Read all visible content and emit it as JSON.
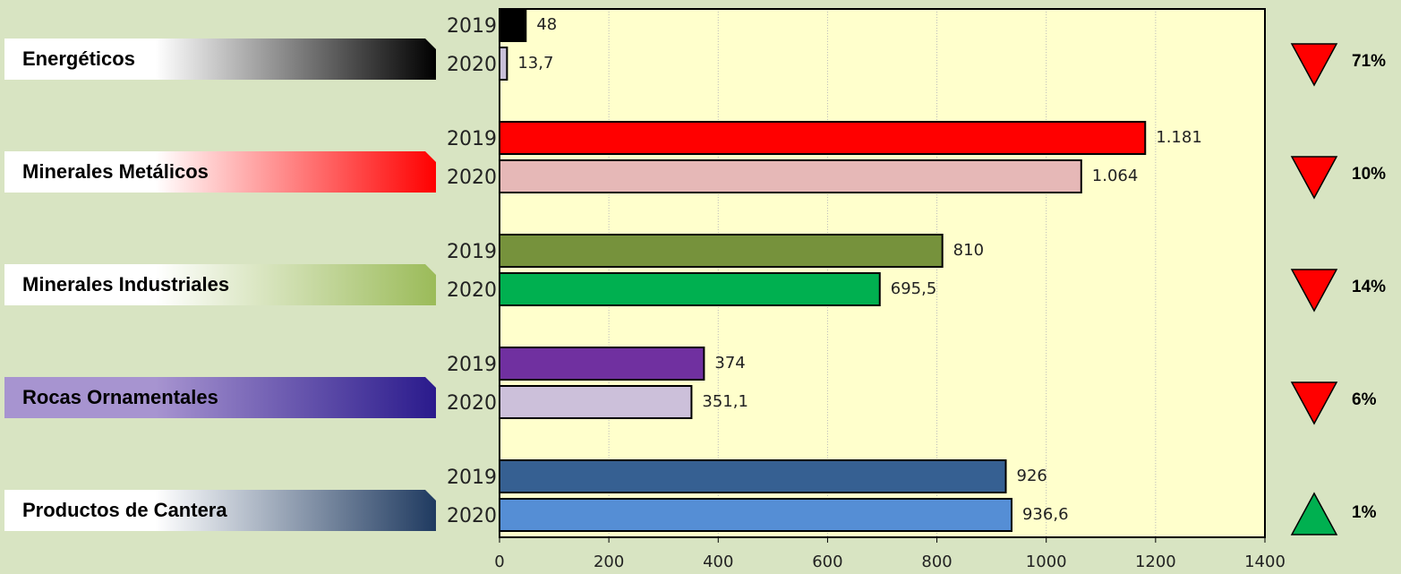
{
  "chart_data": {
    "type": "bar",
    "orientation": "horizontal",
    "categories": [
      "Energéticos",
      "Minerales Metálicos",
      "Minerales Industriales",
      "Rocas Ornamentales",
      "Productos de Cantera"
    ],
    "category_colors": [
      [
        "#ffffff",
        "#000000"
      ],
      [
        "#ffffff",
        "#ff0000"
      ],
      [
        "#ffffff",
        "#9bbb59"
      ],
      [
        "#a794d0",
        "#2a1a8c"
      ],
      [
        "#ffffff",
        "#1f3a60"
      ]
    ],
    "series": [
      {
        "name": "2019",
        "values": [
          48,
          1181,
          810,
          374,
          926
        ],
        "value_labels": [
          "48",
          "1.181",
          "810",
          "374",
          "926"
        ],
        "colors": [
          "#000000",
          "#ff0000",
          "#76923c",
          "#7030a0",
          "#366092"
        ]
      },
      {
        "name": "2020",
        "values": [
          13.7,
          1064,
          695.5,
          351.1,
          936.6
        ],
        "value_labels": [
          "13,7",
          "1.064",
          "695,5",
          "351,1",
          "936,6"
        ],
        "colors": [
          "#c9c0d9",
          "#e6b8b7",
          "#00b050",
          "#ccc0da",
          "#558ed5"
        ]
      }
    ],
    "changes": [
      "71%",
      "10%",
      "14%",
      "6%",
      "1%"
    ],
    "change_directions": [
      "down",
      "down",
      "down",
      "down",
      "up"
    ],
    "xlim": [
      0,
      1400
    ],
    "xticks": [
      0,
      200,
      400,
      600,
      800,
      1000,
      1200,
      1400
    ],
    "grid": true
  }
}
